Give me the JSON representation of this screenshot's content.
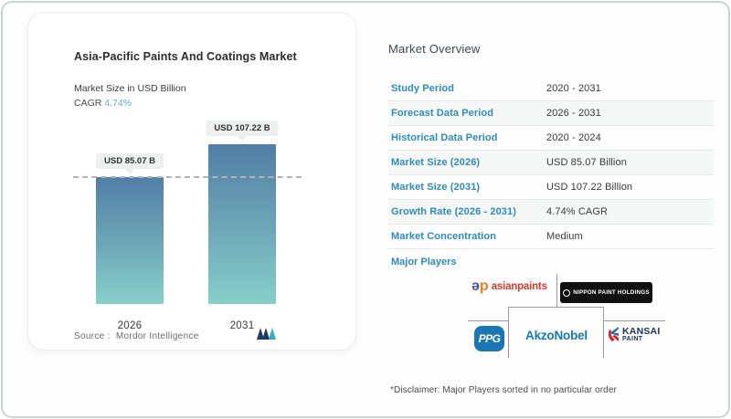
{
  "chart_card": {
    "title": "Asia-Pacific Paints And Coatings Market",
    "subtitle": "Market Size in USD Billion",
    "cagr_label": "CAGR",
    "cagr_value": "4.74%",
    "cagr_color": "#5fb3b7",
    "source_label": "Source :",
    "source_value": "Mordor Intelligence",
    "logo": "mordor-intelligence-logo"
  },
  "chart_data": {
    "type": "bar",
    "categories": [
      "2026",
      "2031"
    ],
    "values": [
      85.07,
      107.22
    ],
    "bar_labels": [
      "USD 85.07 B",
      "USD 107.22 B"
    ],
    "title": "Asia-Pacific Paints And Coatings Market",
    "xlabel": "",
    "ylabel": "Market Size in USD Billion",
    "ylim": [
      0,
      115
    ],
    "grid": false,
    "legend": "none",
    "bar_gradient_top": "#527ea6",
    "bar_gradient_bottom": "#87cfca",
    "reference_line": {
      "y": 85.07,
      "style": "dashed",
      "color": "#b3b3b3"
    }
  },
  "overview": {
    "heading": "Market Overview",
    "rows": [
      {
        "label": "Study Period",
        "value": "2020 - 2031"
      },
      {
        "label": "Forecast Data Period",
        "value": "2026 - 2031"
      },
      {
        "label": "Historical Data Period",
        "value": "2020 - 2024"
      },
      {
        "label": "Market Size (2026)",
        "value": "USD 85.07 Billion"
      },
      {
        "label": "Market Size (2031)",
        "value": "USD 107.22 Billion"
      },
      {
        "label": "Growth Rate (2026 - 2031)",
        "value": "4.74% CAGR"
      },
      {
        "label": "Market Concentration",
        "value": "Medium"
      }
    ],
    "label_color": "#2d8cbf",
    "major_players_label": "Major Players",
    "disclaimer": "*Disclaimer: Major Players sorted in no particular order"
  },
  "players": {
    "asianpaints_mark_a": "ə",
    "asianpaints_mark_p": "p",
    "asianpaints_text": "asianpaints",
    "nippon_text": "NIPPON PAINT HOLDINGS",
    "ppg_text": "PPG",
    "akzonobel_text": "AkzoNobel",
    "kansai_name": "KANSAI",
    "kansai_sub": "PAINT"
  }
}
